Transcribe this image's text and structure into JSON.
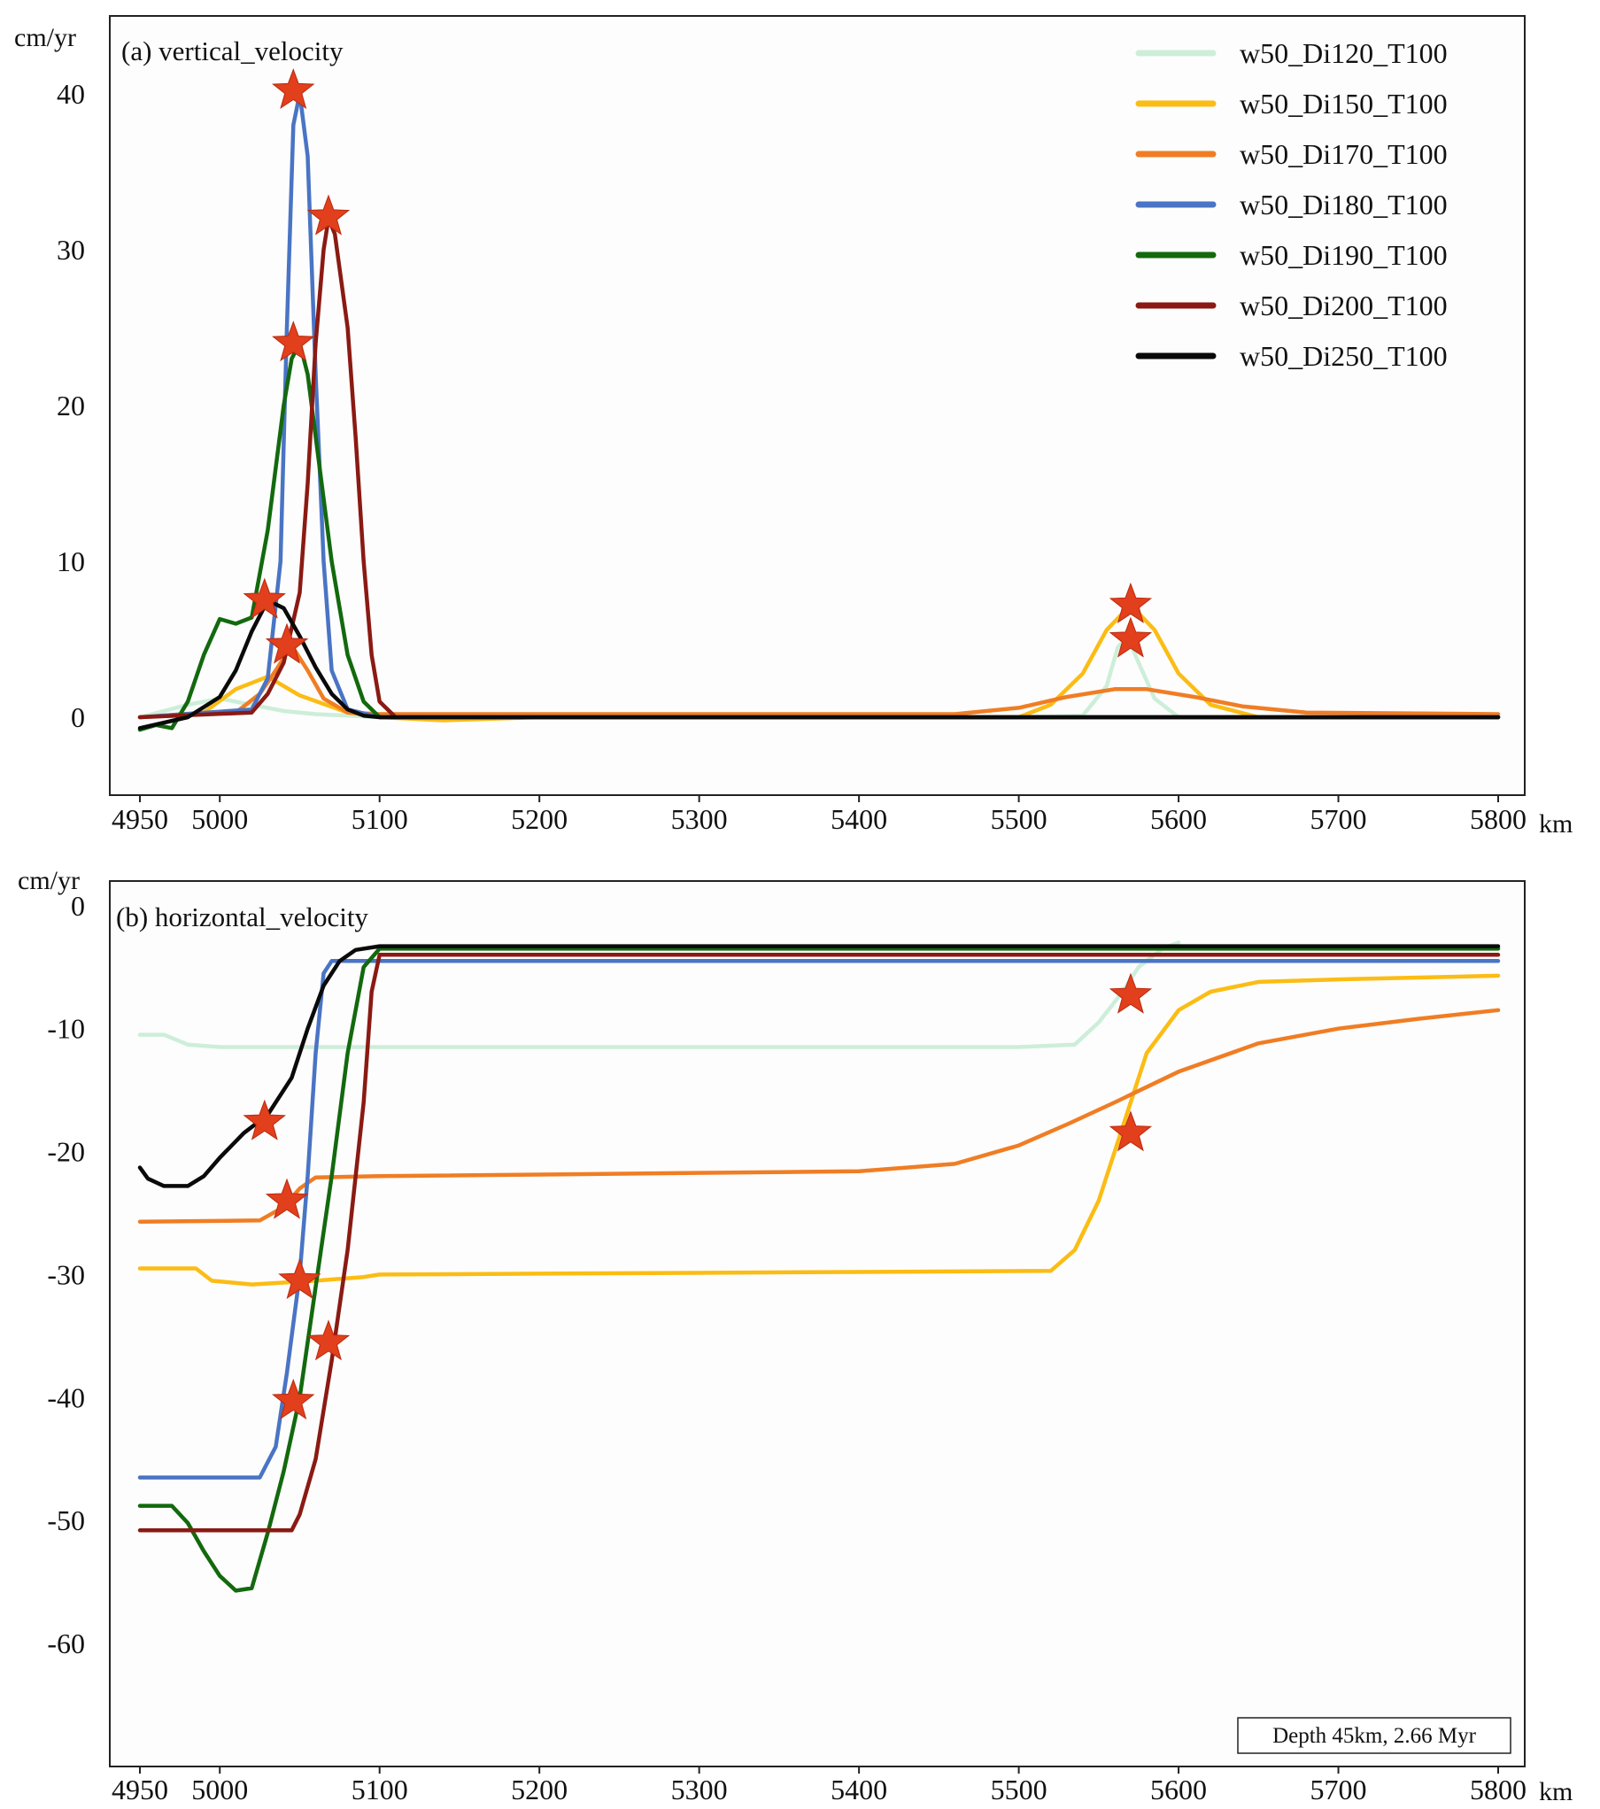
{
  "chart_data": [
    {
      "type": "line",
      "panel": "(a)",
      "title": "(a)  vertical_velocity",
      "ylabel": "cm/yr",
      "xlabel": "km",
      "xlim": [
        4950,
        5800
      ],
      "ylim": [
        -5,
        45
      ],
      "xticks": [
        4950,
        5000,
        5100,
        5200,
        5300,
        5400,
        5500,
        5600,
        5700,
        5800
      ],
      "yticks": [
        0,
        10,
        20,
        30,
        40
      ],
      "legend_position": "top-right",
      "series": [
        {
          "name": "w50_Di120_T100",
          "color": "#cdeed9",
          "x": [
            4950,
            4980,
            5000,
            5020,
            5040,
            5060,
            5080,
            5100,
            5500,
            5540,
            5555,
            5562,
            5568,
            5575,
            5585,
            5600,
            5800
          ],
          "y": [
            0,
            0.8,
            1.2,
            0.8,
            0.4,
            0.2,
            0.1,
            0.0,
            0.0,
            0.1,
            2.0,
            4.5,
            5.2,
            3.5,
            1.2,
            0.0,
            0.0
          ]
        },
        {
          "name": "w50_Di150_T100",
          "color": "#fbbc14",
          "x": [
            4950,
            4990,
            5010,
            5030,
            5050,
            5080,
            5100,
            5140,
            5200,
            5500,
            5520,
            5540,
            5555,
            5570,
            5585,
            5600,
            5620,
            5650,
            5800
          ],
          "y": [
            0,
            0.3,
            1.8,
            2.6,
            1.4,
            0.3,
            0.0,
            -0.2,
            0.0,
            0.0,
            0.8,
            2.8,
            5.6,
            7.2,
            5.6,
            2.8,
            0.8,
            0.0,
            0.0
          ]
        },
        {
          "name": "w50_Di170_T100",
          "color": "#f07d24",
          "x": [
            4950,
            5010,
            5025,
            5035,
            5045,
            5055,
            5065,
            5080,
            5100,
            5460,
            5500,
            5530,
            5560,
            5580,
            5610,
            5640,
            5680,
            5800
          ],
          "y": [
            0,
            0.3,
            1.5,
            3.0,
            4.6,
            3.0,
            1.2,
            0.3,
            0.2,
            0.2,
            0.6,
            1.3,
            1.8,
            1.8,
            1.3,
            0.7,
            0.3,
            0.2
          ]
        },
        {
          "name": "w50_Di180_T100",
          "color": "#4a74c4",
          "x": [
            4950,
            5020,
            5030,
            5038,
            5042,
            5046,
            5050,
            5055,
            5060,
            5065,
            5070,
            5080,
            5100,
            5800
          ],
          "y": [
            0,
            0.5,
            2.5,
            10,
            25,
            38,
            40,
            36,
            22,
            10,
            3,
            0.5,
            0.0,
            0.0
          ]
        },
        {
          "name": "w50_Di190_T100",
          "color": "#13690e",
          "x": [
            4950,
            4960,
            4970,
            4980,
            4990,
            5000,
            5010,
            5020,
            5030,
            5040,
            5045,
            5050,
            5055,
            5060,
            5070,
            5080,
            5090,
            5100,
            5800
          ],
          "y": [
            -0.8,
            -0.5,
            -0.7,
            1.0,
            4.0,
            6.3,
            6.0,
            6.4,
            12,
            20,
            23,
            24,
            22,
            18,
            10,
            4,
            1,
            0.0,
            0.0
          ]
        },
        {
          "name": "w50_Di200_T100",
          "color": "#8a1a13",
          "x": [
            4950,
            5020,
            5030,
            5040,
            5050,
            5055,
            5060,
            5065,
            5068,
            5072,
            5080,
            5085,
            5090,
            5095,
            5100,
            5110,
            5800
          ],
          "y": [
            0,
            0.3,
            1.5,
            3.5,
            8,
            15,
            24,
            30,
            32,
            31,
            25,
            18,
            10,
            4,
            1,
            0.0,
            0.0
          ]
        },
        {
          "name": "w50_Di250_T100",
          "color": "#0a0a0a",
          "x": [
            4950,
            4980,
            5000,
            5010,
            5020,
            5030,
            5040,
            5050,
            5060,
            5070,
            5080,
            5090,
            5100,
            5800
          ],
          "y": [
            -0.7,
            0.0,
            1.3,
            3.0,
            5.5,
            7.5,
            7.0,
            5.2,
            3.2,
            1.5,
            0.5,
            0.1,
            0.0,
            0.0
          ]
        }
      ],
      "markers": {
        "symbol": "star",
        "color": "#e23f1c",
        "points": [
          [
            5046,
            40.2
          ],
          [
            5068,
            32.1
          ],
          [
            5046,
            24.0
          ],
          [
            5028,
            7.5
          ],
          [
            5042,
            4.6
          ],
          [
            5570,
            7.2
          ],
          [
            5570,
            5.0
          ]
        ]
      }
    },
    {
      "type": "line",
      "panel": "(b)",
      "title": "(b)  horizontal_velocity",
      "ylabel": "cm/yr",
      "xlabel": "km",
      "xlim": [
        4950,
        5800
      ],
      "ylim": [
        -70,
        2
      ],
      "xticks": [
        4950,
        5000,
        5100,
        5200,
        5300,
        5400,
        5500,
        5600,
        5700,
        5800
      ],
      "yticks": [
        0,
        -10,
        -20,
        -30,
        -40,
        -50,
        -60
      ],
      "annotation": "Depth 45km, 2.66 Myr",
      "series": [
        {
          "name": "w50_Di120_T100",
          "color": "#cdeed9",
          "x": [
            4950,
            4965,
            4980,
            5000,
            5500,
            5535,
            5550,
            5565,
            5575,
            5590,
            5600
          ],
          "y": [
            -10.5,
            -10.5,
            -11.3,
            -11.5,
            -11.5,
            -11.3,
            -9.5,
            -7.0,
            -5.0,
            -3.5,
            -3.0
          ]
        },
        {
          "name": "w50_Di150_T100",
          "color": "#fbbc14",
          "x": [
            4950,
            4985,
            4995,
            5020,
            5060,
            5090,
            5100,
            5520,
            5535,
            5550,
            5560,
            5570,
            5580,
            5600,
            5620,
            5650,
            5700,
            5800
          ],
          "y": [
            -29.5,
            -29.5,
            -30.5,
            -30.8,
            -30.5,
            -30.2,
            -30.0,
            -29.7,
            -28,
            -24,
            -20,
            -16,
            -12,
            -8.5,
            -7,
            -6.2,
            -6.0,
            -5.7
          ]
        },
        {
          "name": "w50_Di170_T100",
          "color": "#f07d24",
          "x": [
            4950,
            5025,
            5040,
            5050,
            5060,
            5100,
            5400,
            5460,
            5500,
            5530,
            5560,
            5600,
            5650,
            5700,
            5750,
            5800
          ],
          "y": [
            -25.7,
            -25.6,
            -24.5,
            -23,
            -22.1,
            -22.0,
            -21.6,
            -21.0,
            -19.5,
            -17.8,
            -16.0,
            -13.5,
            -11.2,
            -10,
            -9.2,
            -8.5
          ]
        },
        {
          "name": "w50_Di180_T100",
          "color": "#4a74c4",
          "x": [
            4950,
            5025,
            5035,
            5042,
            5050,
            5055,
            5060,
            5065,
            5070,
            5100,
            5800
          ],
          "y": [
            -46.5,
            -46.5,
            -44,
            -38,
            -30,
            -22,
            -12,
            -5.5,
            -4.5,
            -4.5,
            -4.5
          ]
        },
        {
          "name": "w50_Di190_T100",
          "color": "#13690e",
          "x": [
            4950,
            4970,
            4980,
            4990,
            5000,
            5010,
            5020,
            5030,
            5040,
            5050,
            5060,
            5070,
            5080,
            5090,
            5100,
            5800
          ],
          "y": [
            -48.8,
            -48.8,
            -50.2,
            -52.5,
            -54.5,
            -55.7,
            -55.5,
            -51,
            -46,
            -40,
            -31,
            -22,
            -12,
            -5,
            -3.5,
            -3.5
          ]
        },
        {
          "name": "w50_Di200_T100",
          "color": "#8a1a13",
          "x": [
            4950,
            5045,
            5050,
            5060,
            5070,
            5080,
            5090,
            5095,
            5100,
            5800
          ],
          "y": [
            -50.8,
            -50.8,
            -49.5,
            -45,
            -37,
            -28,
            -16,
            -7,
            -4,
            -4.0
          ]
        },
        {
          "name": "w50_Di250_T100",
          "color": "#0a0a0a",
          "x": [
            4950,
            4955,
            4965,
            4980,
            4990,
            5000,
            5015,
            5030,
            5045,
            5055,
            5065,
            5075,
            5085,
            5100,
            5800
          ],
          "y": [
            -21.3,
            -22.2,
            -22.8,
            -22.8,
            -22.0,
            -20.5,
            -18.5,
            -17.0,
            -14.0,
            -10,
            -6.5,
            -4.5,
            -3.6,
            -3.3,
            -3.3
          ]
        }
      ],
      "markers": {
        "symbol": "star",
        "color": "#e23f1c",
        "points": [
          [
            5570,
            -7.3
          ],
          [
            5028,
            -17.6
          ],
          [
            5570,
            -18.5
          ],
          [
            5042,
            -24.0
          ],
          [
            5050,
            -30.5
          ],
          [
            5068,
            -35.5
          ],
          [
            5046,
            -40.3
          ]
        ]
      }
    }
  ]
}
